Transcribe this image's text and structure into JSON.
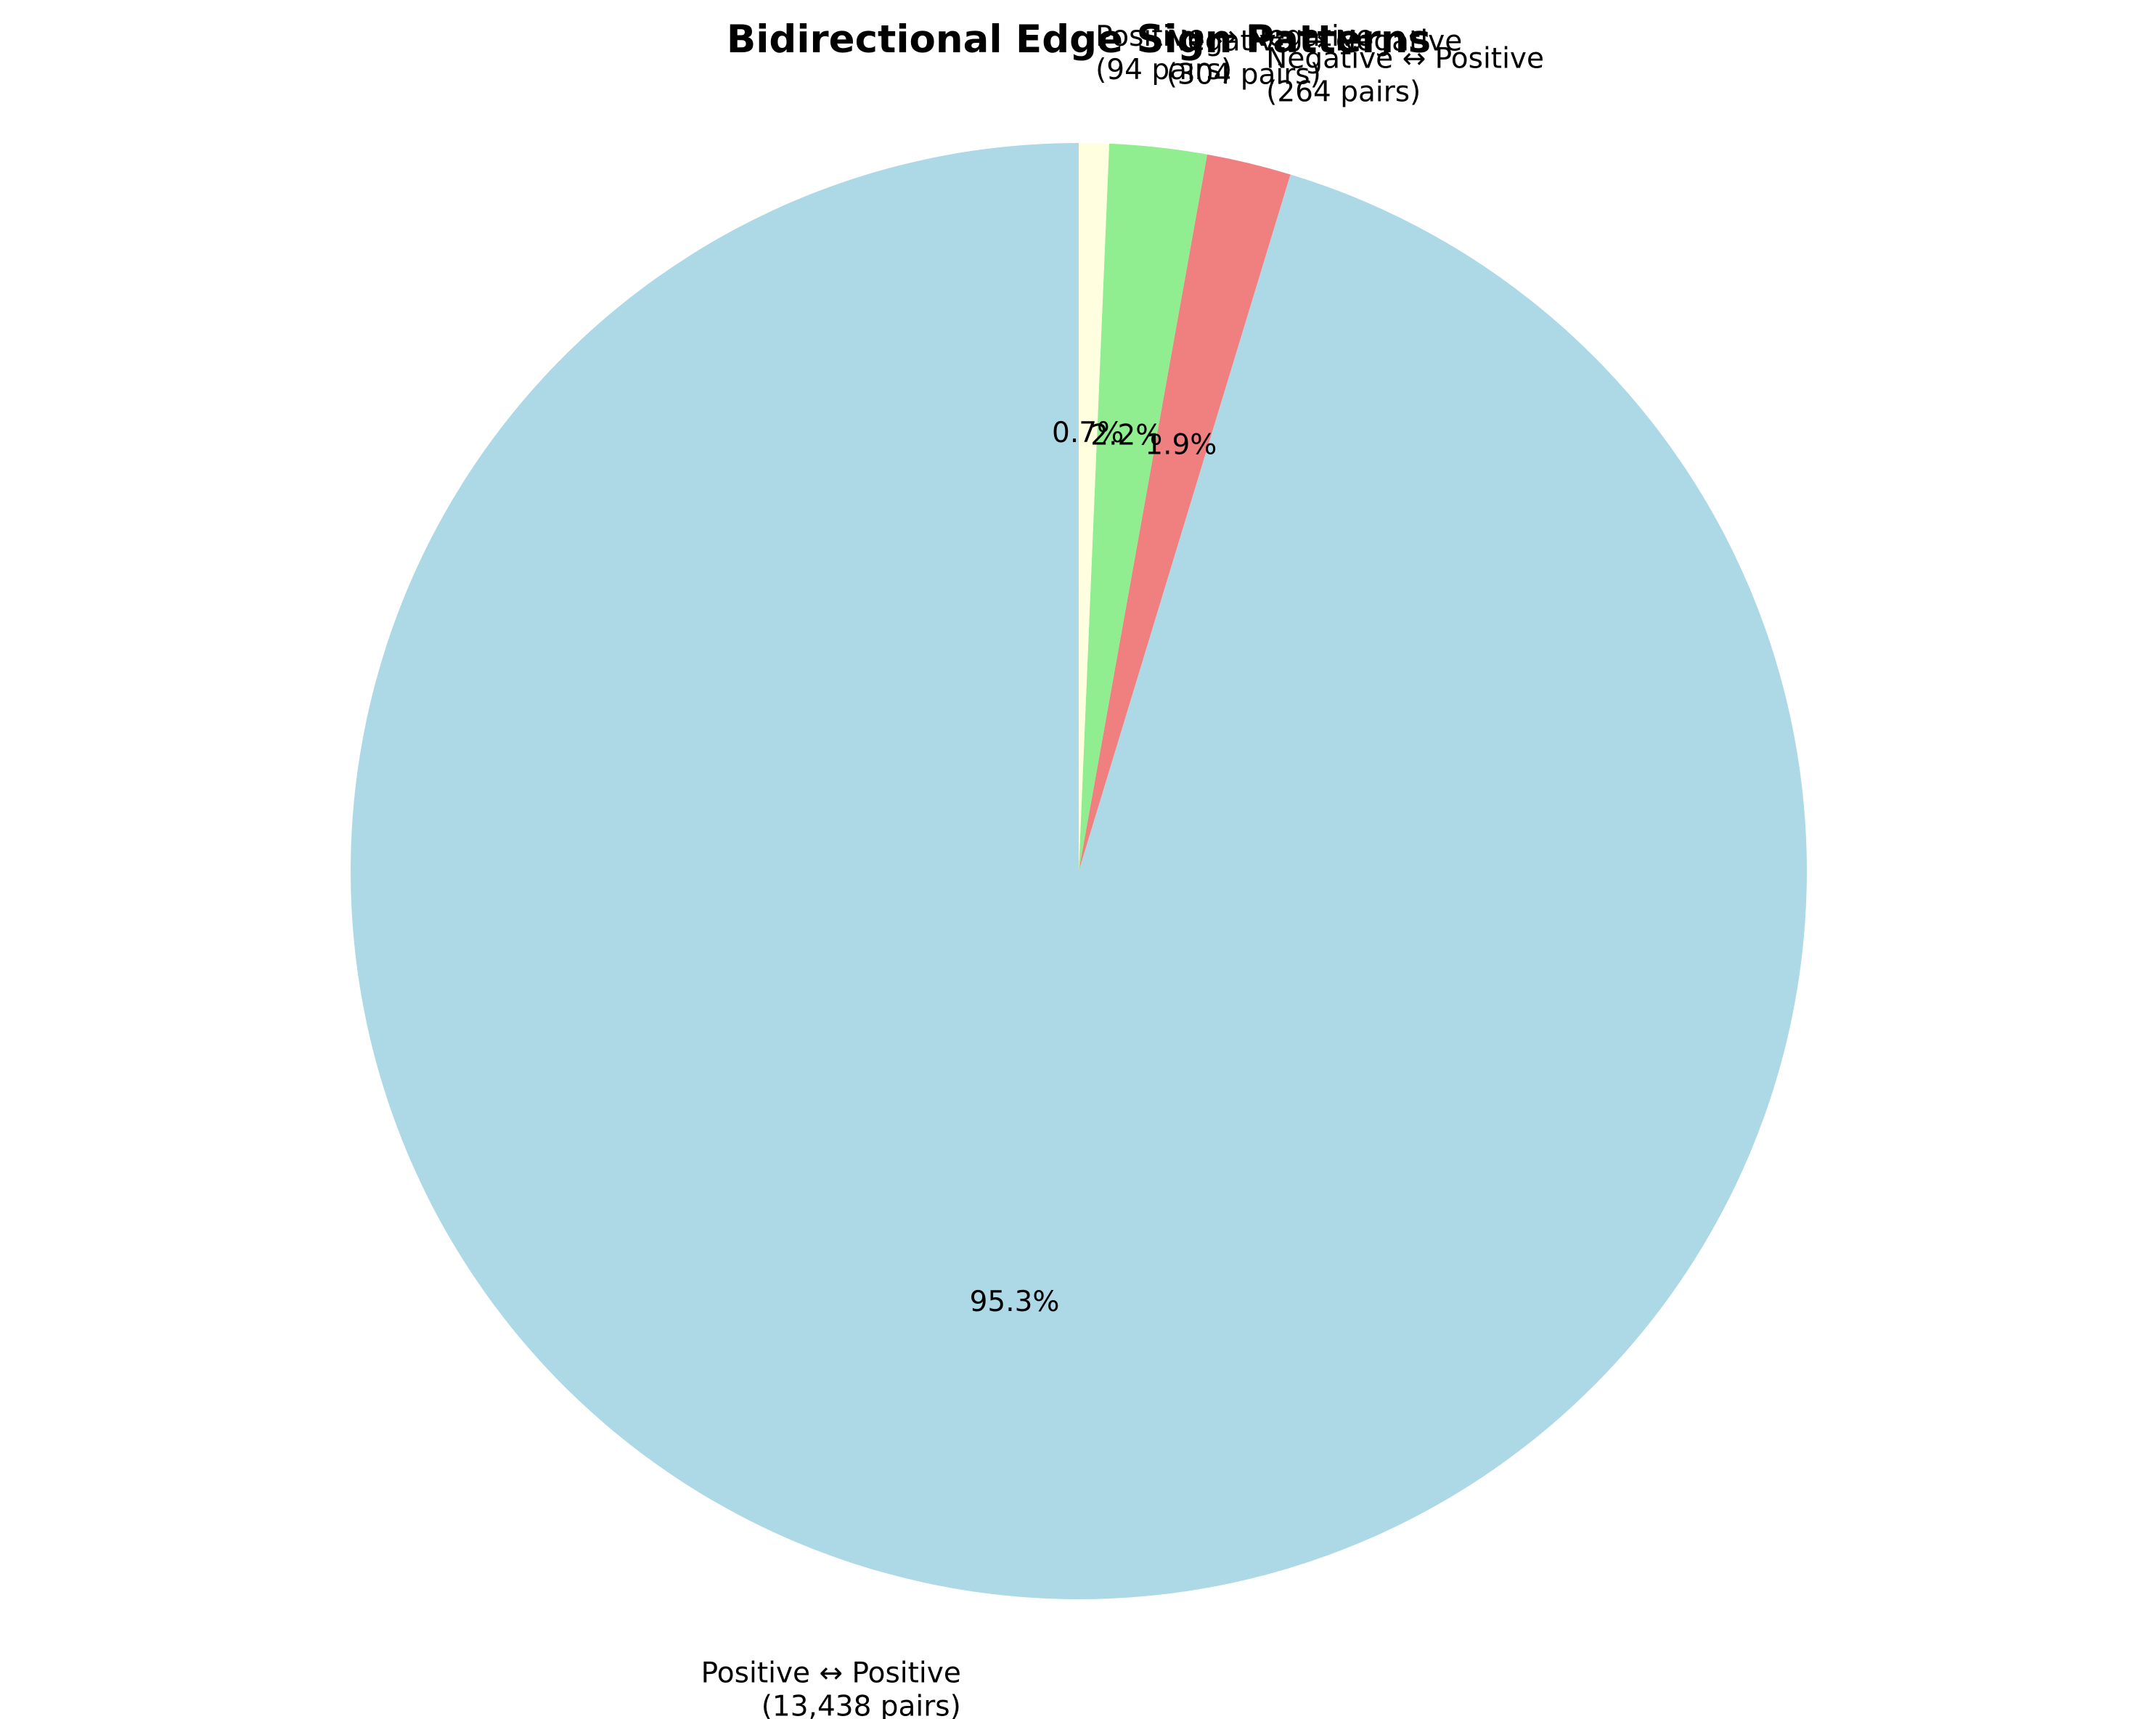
{
  "chart_data": {
    "type": "pie",
    "title": "Bidirectional Edge Sign Patterns",
    "slices": [
      {
        "label": "Positive ↔ Positive",
        "sublabel": "(13,438 pairs)",
        "value": 13438,
        "pct_label": "95.3%",
        "color": "#add8e6"
      },
      {
        "label": "Negative ↔ Positive",
        "sublabel": "(264 pairs)",
        "value": 264,
        "pct_label": "1.9%",
        "color": "#f08080"
      },
      {
        "label": "Negative ↔ Negative",
        "sublabel": "(304 pairs)",
        "value": 304,
        "pct_label": "2.2%",
        "color": "#90ee90"
      },
      {
        "label": "Positive ↔ Negative",
        "sublabel": "(94 pairs)",
        "value": 94,
        "pct_label": "0.7%",
        "color": "#ffffe0"
      }
    ]
  }
}
